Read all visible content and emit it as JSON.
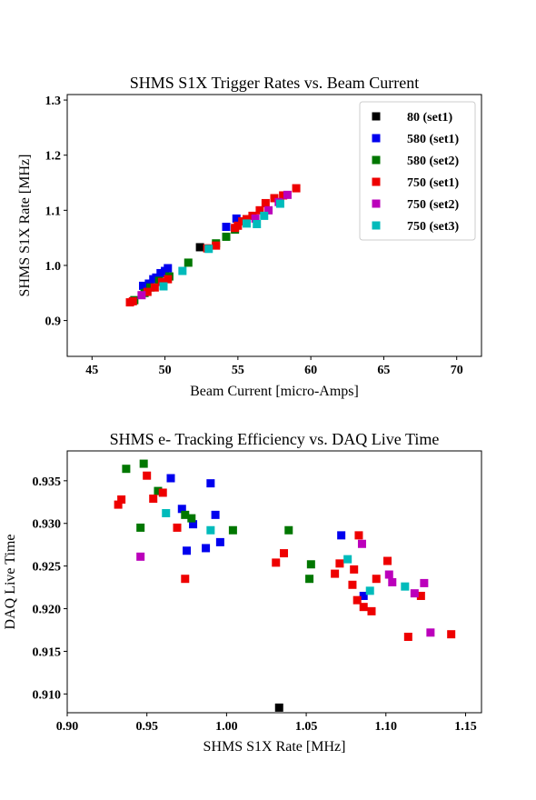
{
  "chart_data": [
    {
      "type": "scatter",
      "title": "SHMS S1X Trigger Rates vs. Beam Current",
      "xlabel": "Beam Current [micro-Amps]",
      "ylabel": "SHMS S1X Rate [MHz]",
      "xlim": [
        43.3,
        71.7
      ],
      "ylim": [
        0.835,
        1.31
      ],
      "xticks": [
        "45",
        "50",
        "55",
        "60",
        "65",
        "70"
      ],
      "yticks": [
        "0.9",
        "1.0",
        "1.1",
        "1.2",
        "1.3"
      ],
      "xtick_values": [
        45,
        50,
        55,
        60,
        65,
        70
      ],
      "ytick_values": [
        0.9,
        1.0,
        1.1,
        1.2,
        1.3
      ],
      "legend": "top-right",
      "series": [
        {
          "name": "80 (set1)",
          "color": "#000000",
          "points": [
            [
              52.4,
              1.033
            ]
          ]
        },
        {
          "name": "580 (set1)",
          "color": "#0000ee",
          "points": [
            [
              48.5,
              0.963
            ],
            [
              48.9,
              0.967
            ],
            [
              49.2,
              0.975
            ],
            [
              49.4,
              0.978
            ],
            [
              49.7,
              0.986
            ],
            [
              50.0,
              0.99
            ],
            [
              50.2,
              0.995
            ],
            [
              54.2,
              1.07
            ],
            [
              54.9,
              1.085
            ]
          ]
        },
        {
          "name": "580 (set2)",
          "color": "#007700",
          "points": [
            [
              47.9,
              0.937
            ],
            [
              48.6,
              0.95
            ],
            [
              49.0,
              0.96
            ],
            [
              49.6,
              0.972
            ],
            [
              50.3,
              0.98
            ],
            [
              51.6,
              1.005
            ],
            [
              53.5,
              1.04
            ],
            [
              54.2,
              1.052
            ],
            [
              54.8,
              1.065
            ]
          ]
        },
        {
          "name": "750 (set1)",
          "color": "#ee0000",
          "points": [
            [
              47.6,
              0.933
            ],
            [
              47.8,
              0.935
            ],
            [
              48.8,
              0.952
            ],
            [
              49.3,
              0.96
            ],
            [
              49.8,
              0.97
            ],
            [
              50.2,
              0.975
            ],
            [
              52.9,
              1.031
            ],
            [
              53.5,
              1.036
            ],
            [
              54.8,
              1.068
            ],
            [
              55.0,
              1.072
            ],
            [
              55.3,
              1.08
            ],
            [
              55.6,
              1.084
            ],
            [
              56.0,
              1.09
            ],
            [
              56.5,
              1.1
            ],
            [
              56.9,
              1.113
            ],
            [
              57.5,
              1.122
            ],
            [
              58.1,
              1.127
            ],
            [
              59.0,
              1.14
            ]
          ]
        },
        {
          "name": "750 (set2)",
          "color": "#bb00bb",
          "points": [
            [
              48.4,
              0.946
            ],
            [
              56.2,
              1.085
            ],
            [
              57.1,
              1.1
            ],
            [
              57.8,
              1.115
            ],
            [
              58.4,
              1.128
            ]
          ]
        },
        {
          "name": "750 (set3)",
          "color": "#00bbbb",
          "points": [
            [
              49.9,
              0.962
            ],
            [
              51.2,
              0.99
            ],
            [
              53.0,
              1.03
            ],
            [
              55.6,
              1.076
            ],
            [
              56.3,
              1.075
            ],
            [
              56.8,
              1.09
            ],
            [
              57.9,
              1.112
            ]
          ]
        }
      ]
    },
    {
      "type": "scatter",
      "title": "SHMS e- Tracking Efficiency vs. DAQ Live Time",
      "xlabel": "SHMS S1X Rate [MHz]",
      "ylabel": "DAQ Live Time",
      "xlim": [
        0.9,
        1.16
      ],
      "ylim": [
        0.9078,
        0.9385
      ],
      "xticks": [
        "0.90",
        "0.95",
        "1.00",
        "1.05",
        "1.10",
        "1.15"
      ],
      "yticks": [
        "0.910",
        "0.915",
        "0.920",
        "0.925",
        "0.930",
        "0.935"
      ],
      "xtick_values": [
        0.9,
        0.95,
        1.0,
        1.05,
        1.1,
        1.15
      ],
      "ytick_values": [
        0.91,
        0.915,
        0.92,
        0.925,
        0.93,
        0.935
      ],
      "series": [
        {
          "name": "80 (set1)",
          "color": "#000000",
          "points": [
            [
              1.033,
              0.9084
            ]
          ]
        },
        {
          "name": "580 (set1)",
          "color": "#0000ee",
          "points": [
            [
              0.965,
              0.9353
            ],
            [
              0.972,
              0.9317
            ],
            [
              0.975,
              0.9268
            ],
            [
              0.979,
              0.9299
            ],
            [
              0.987,
              0.9271
            ],
            [
              0.99,
              0.9347
            ],
            [
              0.993,
              0.931
            ],
            [
              0.996,
              0.9278
            ],
            [
              1.072,
              0.9286
            ],
            [
              1.086,
              0.9215
            ]
          ]
        },
        {
          "name": "580 (set2)",
          "color": "#007700",
          "points": [
            [
              0.937,
              0.9364
            ],
            [
              0.946,
              0.9295
            ],
            [
              0.948,
              0.937
            ],
            [
              0.957,
              0.9338
            ],
            [
              0.974,
              0.931
            ],
            [
              0.978,
              0.9306
            ],
            [
              1.004,
              0.9292
            ],
            [
              1.039,
              0.9292
            ],
            [
              1.052,
              0.9235
            ],
            [
              1.053,
              0.9252
            ]
          ]
        },
        {
          "name": "750 (set1)",
          "color": "#ee0000",
          "points": [
            [
              0.932,
              0.9322
            ],
            [
              0.934,
              0.9328
            ],
            [
              0.95,
              0.9356
            ],
            [
              0.954,
              0.9329
            ],
            [
              0.96,
              0.9336
            ],
            [
              0.969,
              0.9295
            ],
            [
              0.974,
              0.9235
            ],
            [
              1.031,
              0.9254
            ],
            [
              1.036,
              0.9265
            ],
            [
              1.068,
              0.9241
            ],
            [
              1.071,
              0.9253
            ],
            [
              1.079,
              0.9228
            ],
            [
              1.08,
              0.9246
            ],
            [
              1.082,
              0.921
            ],
            [
              1.083,
              0.9286
            ],
            [
              1.086,
              0.9202
            ],
            [
              1.091,
              0.9197
            ],
            [
              1.094,
              0.9235
            ],
            [
              1.101,
              0.9256
            ],
            [
              1.114,
              0.9167
            ],
            [
              1.122,
              0.9215
            ],
            [
              1.141,
              0.917
            ]
          ]
        },
        {
          "name": "750 (set2)",
          "color": "#bb00bb",
          "points": [
            [
              0.946,
              0.9261
            ],
            [
              1.085,
              0.9276
            ],
            [
              1.102,
              0.924
            ],
            [
              1.104,
              0.9231
            ],
            [
              1.118,
              0.9218
            ],
            [
              1.124,
              0.923
            ],
            [
              1.128,
              0.9172
            ]
          ]
        },
        {
          "name": "750 (set3)",
          "color": "#00bbbb",
          "points": [
            [
              0.962,
              0.9312
            ],
            [
              0.99,
              0.9292
            ],
            [
              1.076,
              0.9258
            ],
            [
              1.09,
              0.9221
            ],
            [
              1.112,
              0.9226
            ]
          ]
        }
      ]
    }
  ]
}
